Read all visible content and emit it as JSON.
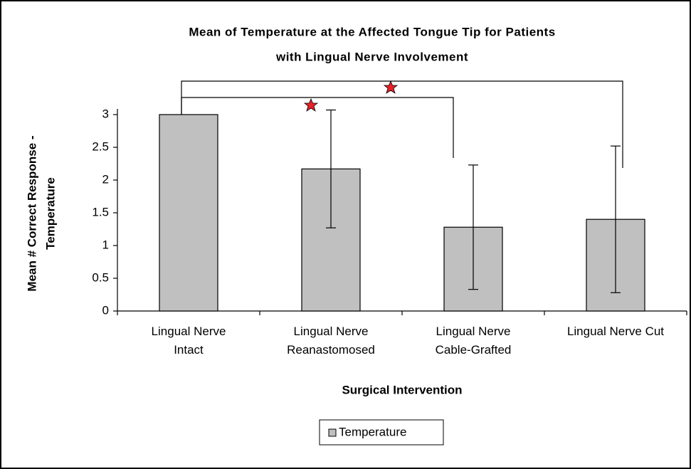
{
  "chart_data": {
    "type": "bar",
    "title": [
      "Mean of Temperature at the Affected Tongue Tip for Patients",
      "with Lingual Nerve Involvement"
    ],
    "xlabel": "Surgical Intervention",
    "ylabel": [
      "Mean # Correct Response -",
      "Temperature"
    ],
    "categories": [
      "Lingual Nerve\nIntact",
      "Lingual Nerve\nReanastomosed",
      "Lingual Nerve\nCable-Grafted",
      "Lingual Nerve Cut"
    ],
    "series": [
      {
        "name": "Temperature",
        "color": "#c0c0c0",
        "values": [
          3.0,
          2.17,
          1.28,
          1.4
        ],
        "errors": [
          0,
          0.9,
          0.95,
          1.12
        ]
      }
    ],
    "ylim": [
      0,
      3
    ],
    "yticks": [
      0,
      0.5,
      1,
      1.5,
      2,
      2.5,
      3
    ],
    "grid": false,
    "legend": "bottom"
  }
}
